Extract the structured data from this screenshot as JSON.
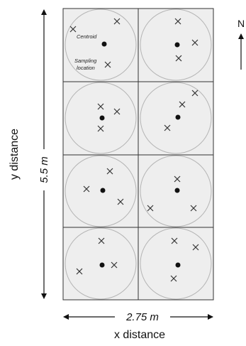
{
  "figure": {
    "width_label": "2.75 m",
    "height_label": "5.5 m",
    "x_axis_label": "x distance",
    "y_axis_label": "y distance",
    "north_label": "N",
    "legend": {
      "centroid_label": "Centroid",
      "sampling_label_line1": "Sampling",
      "sampling_label_line2": "location"
    },
    "colors": {
      "cell_fill": "#eeeeee",
      "grid_line": "#333333",
      "circle_line": "#b5b5b5",
      "marker": "#111111",
      "cross": "#333333"
    },
    "grid": {
      "rows": 4,
      "cols": 2
    }
  }
}
